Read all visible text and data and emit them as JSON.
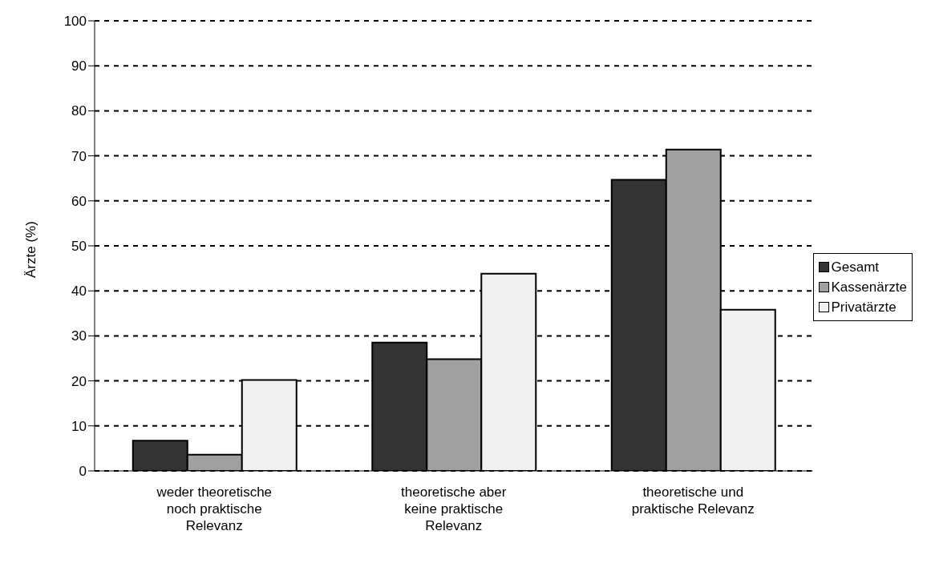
{
  "chart_data": {
    "type": "bar",
    "ylabel": "Ärzte (%)",
    "categories": [
      "weder theoretische noch praktische Relevanz",
      "theoretische aber keine praktische Relevanz",
      "theoretische und praktische Relevanz"
    ],
    "series": [
      {
        "name": "Gesamt",
        "color": "#333333",
        "values": [
          6.7,
          28.5,
          64.7
        ]
      },
      {
        "name": "Kassenärzte",
        "color": "#a0a0a0",
        "values": [
          3.6,
          24.8,
          71.4
        ]
      },
      {
        "name": "Privatärzte",
        "color": "#f0f0f0",
        "values": [
          20.2,
          43.8,
          35.8
        ]
      }
    ],
    "ylim": [
      0,
      100
    ],
    "yticks": [
      0,
      10,
      20,
      30,
      40,
      50,
      60,
      70,
      80,
      90,
      100
    ],
    "grid": "y",
    "legend": "right"
  }
}
